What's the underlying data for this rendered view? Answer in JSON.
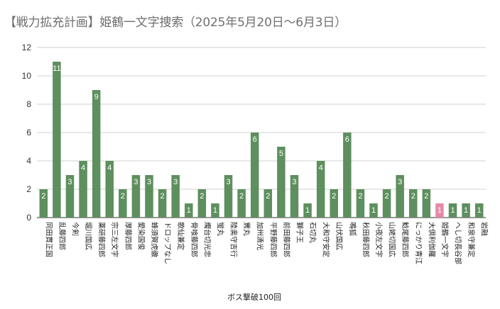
{
  "title": "【戦力拡充計画】姫鶴一文字捜索（2025年5月20日～6月3日）",
  "chart_data": {
    "type": "bar",
    "title": "【戦力拡充計画】姫鶴一文字捜索（2025年5月20日～6月3日）",
    "xlabel": "ボス撃破100回",
    "ylabel": "",
    "ylim": [
      0,
      12
    ],
    "yticks": [
      0,
      2,
      4,
      6,
      8,
      10,
      12
    ],
    "grid": true,
    "legend": "none",
    "bar_color": "#5e8f5e",
    "highlight_color": "#e58aa8",
    "highlight_category": "姫鶴一文字",
    "categories": [
      "同田貫正国",
      "乱藤四郎",
      "今剣",
      "堀川国広",
      "薬研藤四郎",
      "宗三左文字",
      "厚藤四郎",
      "愛染国俊",
      "蜂須賀虎徹",
      "ドロップなし",
      "歌仙兼定",
      "骨喰藤四郎",
      "燭台切光忠",
      "蛍丸",
      "陸奥守吉行",
      "鶯丸",
      "加州清光",
      "平野藤四郎",
      "前田藤四郎",
      "獅子王",
      "石切丸",
      "大和守安定",
      "山伏国広",
      "鳴狐",
      "秋田藤四郎",
      "小夜左文字",
      "山姥切国広",
      "鯰尾藤四郎",
      "にっかり青江",
      "大倶利伽羅",
      "姫鶴一文字",
      "へし切長谷部",
      "和泉守兼定",
      "岩融"
    ],
    "values": [
      2,
      11,
      3,
      4,
      9,
      4,
      2,
      3,
      3,
      2,
      3,
      1,
      2,
      1,
      3,
      2,
      6,
      2,
      5,
      3,
      1,
      4,
      2,
      6,
      2,
      1,
      2,
      3,
      2,
      2,
      1,
      1,
      1,
      1
    ]
  }
}
